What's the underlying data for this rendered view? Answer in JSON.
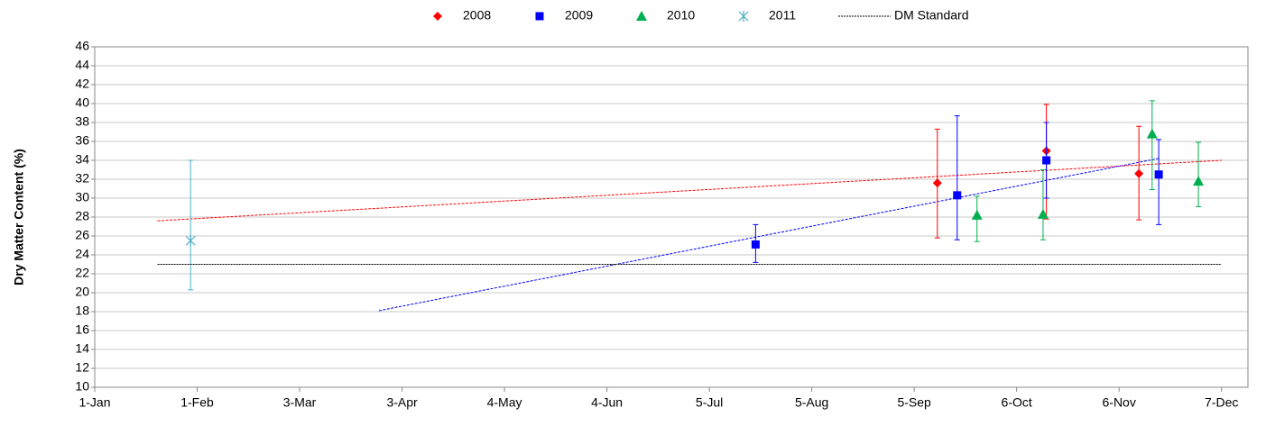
{
  "chart_data": {
    "type": "scatter",
    "y_label": "Dry Matter Content (%)",
    "xlim": [
      0,
      349
    ],
    "xticks": [
      {
        "value": 0,
        "label": "1-Jan"
      },
      {
        "value": 31,
        "label": "1-Feb"
      },
      {
        "value": 62,
        "label": "3-Mar"
      },
      {
        "value": 93,
        "label": "3-Apr"
      },
      {
        "value": 124,
        "label": "4-May"
      },
      {
        "value": 155,
        "label": "4-Jun"
      },
      {
        "value": 186,
        "label": "5-Jul"
      },
      {
        "value": 217,
        "label": "5-Aug"
      },
      {
        "value": 248,
        "label": "5-Sep"
      },
      {
        "value": 279,
        "label": "6-Oct"
      },
      {
        "value": 310,
        "label": "6-Nov"
      },
      {
        "value": 341,
        "label": "7-Dec"
      }
    ],
    "ylim": [
      10,
      46
    ],
    "yticks": [
      10,
      12,
      14,
      16,
      18,
      20,
      22,
      24,
      26,
      28,
      30,
      32,
      34,
      36,
      38,
      40,
      42,
      44,
      46
    ],
    "grid": true,
    "legend": "top",
    "series": [
      {
        "name": "2008",
        "color": "#ff0000",
        "marker": "diamond",
        "x": [
          255,
          288,
          316
        ],
        "values": [
          31.6,
          35,
          32.6
        ],
        "error_low": [
          5.8,
          7.2,
          4.9
        ],
        "error_high": [
          5.7,
          4.9,
          5.0
        ]
      },
      {
        "name": "2009",
        "color": "#0000ff",
        "marker": "square",
        "x": [
          200,
          261,
          288,
          322
        ],
        "values": [
          25.1,
          30.3,
          34,
          32.5
        ],
        "error_low": [
          1.9,
          4.7,
          4.0,
          5.3
        ],
        "error_high": [
          2.1,
          8.4,
          4.0,
          3.7
        ]
      },
      {
        "name": "2010",
        "color": "#00b050",
        "marker": "triangle",
        "x": [
          267,
          287,
          320,
          334
        ],
        "values": [
          28.2,
          28.3,
          36.8,
          31.8
        ],
        "error_low": [
          2.8,
          2.7,
          5.9,
          2.7
        ],
        "error_high": [
          2.0,
          4.7,
          3.5,
          4.1
        ]
      },
      {
        "name": "2011",
        "color": "#4bacc6",
        "marker": "star",
        "x": [
          29
        ],
        "values": [
          25.5
        ],
        "error_low": [
          5.2
        ],
        "error_high": [
          8.5
        ]
      },
      {
        "name": "DM Standard",
        "color": "#000000",
        "marker": "line",
        "x": [
          19,
          341
        ],
        "values": [
          23,
          23
        ]
      }
    ],
    "trendlines": [
      {
        "color": "#ff0000",
        "x": [
          19,
          341
        ],
        "values": [
          27.6,
          34
        ]
      },
      {
        "color": "#0000ff",
        "x": [
          86,
          322
        ],
        "values": [
          18.1,
          34.2
        ]
      }
    ]
  }
}
